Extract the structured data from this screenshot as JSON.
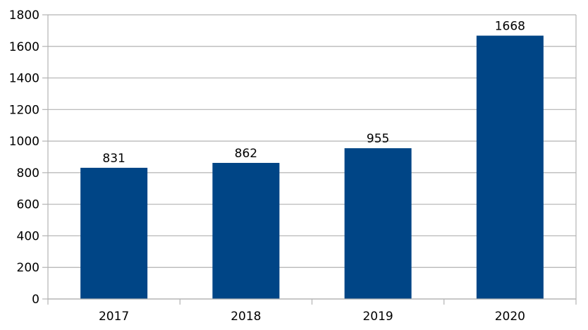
{
  "chart_data": {
    "type": "bar",
    "title": "",
    "categories": [
      "2017",
      "2018",
      "2019",
      "2020"
    ],
    "values": [
      831,
      862,
      955,
      1668
    ],
    "data_labels": [
      "831",
      "862",
      "955",
      "1668"
    ],
    "xlabel": "",
    "ylabel": "",
    "ylim": [
      0,
      1800
    ],
    "ytick_step": 200,
    "ytick_labels": [
      "0",
      "200",
      "400",
      "600",
      "800",
      "1000",
      "1200",
      "1400",
      "1600",
      "1800"
    ],
    "grid": true,
    "legend_position": "none",
    "colors": {
      "bar": "#004586",
      "gridline": "#b3b3b3",
      "axis": "#b3b3b3",
      "label": "#000000",
      "background": "#ffffff"
    }
  }
}
